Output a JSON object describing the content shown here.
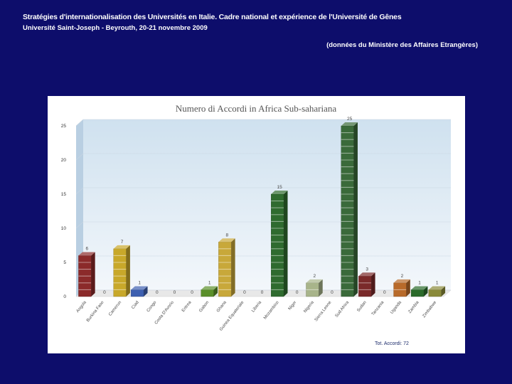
{
  "header": {
    "title": "Stratégies d'internationalisation des Universités en Italie. Cadre national et expérience de l'Université de Gênes",
    "subtitle": "Université Saint-Joseph - Beyrouth, 20-21 novembre 2009",
    "source": "(données du Ministère des Affaires Etrangères)"
  },
  "chart_data": {
    "type": "bar",
    "title": "Numero di Accordi in Africa Sub-sahariana",
    "xlabel": "",
    "ylabel": "",
    "ylim": [
      0,
      25
    ],
    "yticks": [
      0,
      5,
      10,
      15,
      20,
      25
    ],
    "grid": true,
    "legend": "none",
    "categories": [
      "Angola",
      "Burkina Faso",
      "Camerun",
      "Ciad",
      "Congo",
      "Costa D'Avorio",
      "Eritrea",
      "Gabon",
      "Ghana",
      "Guinea Equatoriale",
      "Liberia",
      "Mozambico",
      "Niger",
      "Nigeria",
      "Sierra Leone",
      "Sud Africa",
      "Sudan",
      "Tanzania",
      "Uganda",
      "Zambia",
      "Zimbabwe"
    ],
    "values": [
      6,
      0,
      7,
      1,
      0,
      0,
      0,
      1,
      8,
      0,
      0,
      15,
      0,
      2,
      0,
      25,
      3,
      0,
      2,
      1,
      1
    ],
    "bar_colors": [
      "#8b2a2a",
      "#888888",
      "#c8a82a",
      "#3d5fb0",
      "#888888",
      "#888888",
      "#888888",
      "#5a8f2a",
      "#c8a83a",
      "#888888",
      "#888888",
      "#2f6b2f",
      "#888888",
      "#a8b48a",
      "#888888",
      "#3a6a3a",
      "#7a2a2a",
      "#888888",
      "#b86a2a",
      "#2a6a2a",
      "#8a8a3a"
    ],
    "annotation": "Tot. Accordi: 72"
  }
}
